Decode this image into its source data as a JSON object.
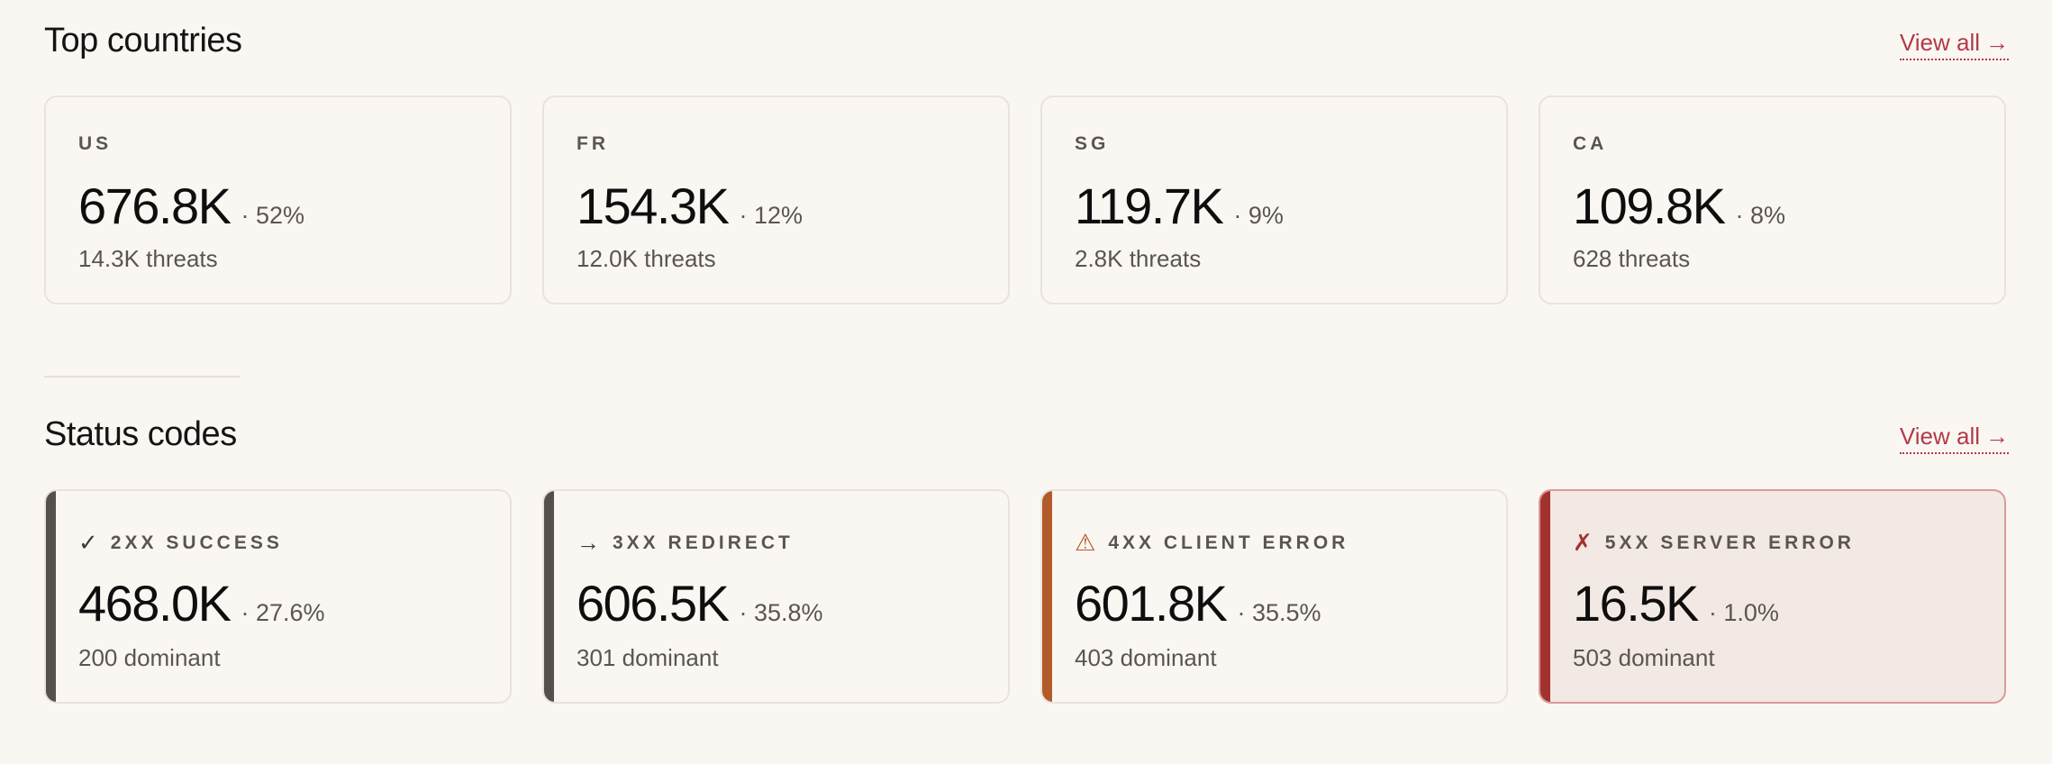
{
  "countries": {
    "title": "Top countries",
    "view_all": "View all",
    "view_all_arrow": "→",
    "cards": [
      {
        "code": "US",
        "value": "676.8K",
        "pct": "· 52%",
        "sub": "14.3K threats"
      },
      {
        "code": "FR",
        "value": "154.3K",
        "pct": "· 12%",
        "sub": "12.0K threats"
      },
      {
        "code": "SG",
        "value": "119.7K",
        "pct": "· 9%",
        "sub": "2.8K threats"
      },
      {
        "code": "CA",
        "value": "109.8K",
        "pct": "· 8%",
        "sub": "628 threats"
      }
    ]
  },
  "status": {
    "title": "Status codes",
    "view_all": "View all",
    "view_all_arrow": "→",
    "cards": [
      {
        "icon": "✓",
        "icon_name": "check-icon",
        "label": "2XX SUCCESS",
        "value": "468.0K",
        "pct": "· 27.6%",
        "sub": "200 dominant",
        "accent": "#55504b",
        "icon_color": "#3f3b37"
      },
      {
        "icon": "→",
        "icon_name": "arrow-right-icon",
        "label": "3XX REDIRECT",
        "value": "606.5K",
        "pct": "· 35.8%",
        "sub": "301 dominant",
        "accent": "#55504b",
        "icon_color": "#3f3b37"
      },
      {
        "icon": "⚠",
        "icon_name": "warning-icon",
        "label": "4XX CLIENT ERROR",
        "value": "601.8K",
        "pct": "· 35.5%",
        "sub": "403 dominant",
        "accent": "#b35a2a",
        "icon_color": "#b35a2a"
      },
      {
        "icon": "✗",
        "icon_name": "cross-icon",
        "label": "5XX SERVER ERROR",
        "value": "16.5K",
        "pct": "· 1.0%",
        "sub": "503 dominant",
        "accent": "#a3322e",
        "icon_color": "#a3322e"
      }
    ]
  },
  "colors": {
    "background": "#faf7f2",
    "link": "#b33a4a",
    "card_border": "#e8e3dc",
    "error_card_bg": "#f2e8e4",
    "error_card_border": "#d99a9a"
  }
}
